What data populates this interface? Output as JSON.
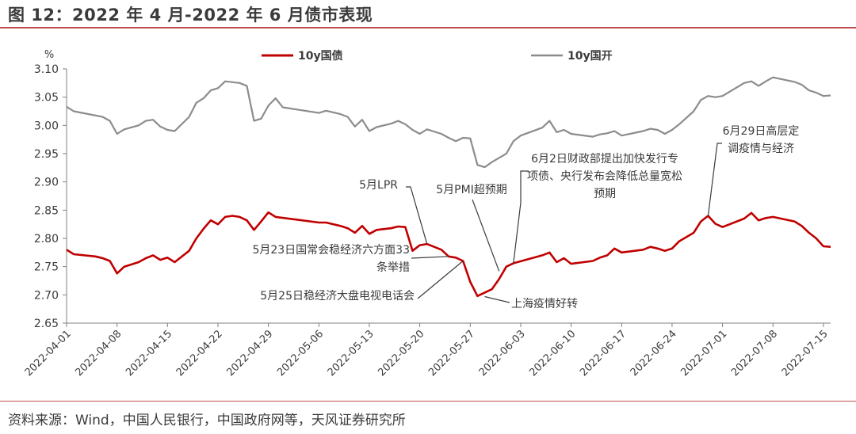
{
  "header": {
    "title": "图 12：2022 年 4 月-2022 年 6 月债市表现"
  },
  "footer": {
    "source": "资料来源：Wind，中国人民银行，中国政府网等，天风证券研究所"
  },
  "colors": {
    "accent": "#c0504d",
    "series_10y_treasury": "#c00000",
    "series_10y_cdb": "#8c8c8c",
    "text": "#3b3b3b"
  },
  "chart_data": {
    "type": "line",
    "ylabel": "%",
    "ylim": [
      2.65,
      3.1
    ],
    "yticks": [
      2.65,
      2.7,
      2.75,
      2.8,
      2.85,
      2.9,
      2.95,
      3.0,
      3.05,
      3.1
    ],
    "ytick_labels": [
      "2.65",
      "2.70",
      "2.75",
      "2.80",
      "2.85",
      "2.90",
      "2.95",
      "3.00",
      "3.05",
      "3.10"
    ],
    "xlim": [
      "2022-04-01",
      "2022-07-16"
    ],
    "xtick_labels": [
      "2022-04-01",
      "2022-04-08",
      "2022-04-15",
      "2022-04-22",
      "2022-04-29",
      "2022-05-06",
      "2022-05-13",
      "2022-05-20",
      "2022-05-27",
      "2022-06-03",
      "2022-06-10",
      "2022-06-17",
      "2022-06-24",
      "2022-07-01",
      "2022-07-08",
      "2022-07-15"
    ],
    "grid": false,
    "legend": "top-center",
    "series": [
      {
        "name": "10y国债",
        "color": "#c00000",
        "points": [
          [
            "2022-04-01",
            2.78
          ],
          [
            "2022-04-02",
            2.772
          ],
          [
            "2022-04-05",
            2.768
          ],
          [
            "2022-04-06",
            2.765
          ],
          [
            "2022-04-07",
            2.76
          ],
          [
            "2022-04-08",
            2.738
          ],
          [
            "2022-04-09",
            2.75
          ],
          [
            "2022-04-11",
            2.758
          ],
          [
            "2022-04-12",
            2.765
          ],
          [
            "2022-04-13",
            2.77
          ],
          [
            "2022-04-14",
            2.762
          ],
          [
            "2022-04-15",
            2.766
          ],
          [
            "2022-04-16",
            2.758
          ],
          [
            "2022-04-18",
            2.778
          ],
          [
            "2022-04-19",
            2.8
          ],
          [
            "2022-04-20",
            2.817
          ],
          [
            "2022-04-21",
            2.832
          ],
          [
            "2022-04-22",
            2.825
          ],
          [
            "2022-04-23",
            2.838
          ],
          [
            "2022-04-24",
            2.84
          ],
          [
            "2022-04-25",
            2.838
          ],
          [
            "2022-04-26",
            2.832
          ],
          [
            "2022-04-27",
            2.815
          ],
          [
            "2022-04-28",
            2.83
          ],
          [
            "2022-04-29",
            2.846
          ],
          [
            "2022-04-30",
            2.838
          ],
          [
            "2022-05-06",
            2.828
          ],
          [
            "2022-05-07",
            2.828
          ],
          [
            "2022-05-09",
            2.822
          ],
          [
            "2022-05-10",
            2.818
          ],
          [
            "2022-05-11",
            2.81
          ],
          [
            "2022-05-12",
            2.822
          ],
          [
            "2022-05-13",
            2.808
          ],
          [
            "2022-05-14",
            2.815
          ],
          [
            "2022-05-16",
            2.818
          ],
          [
            "2022-05-17",
            2.821
          ],
          [
            "2022-05-18",
            2.82
          ],
          [
            "2022-05-19",
            2.778
          ],
          [
            "2022-05-20",
            2.788
          ],
          [
            "2022-05-21",
            2.79
          ],
          [
            "2022-05-23",
            2.78
          ],
          [
            "2022-05-24",
            2.768
          ],
          [
            "2022-05-25",
            2.766
          ],
          [
            "2022-05-26",
            2.76
          ],
          [
            "2022-05-27",
            2.723
          ],
          [
            "2022-05-28",
            2.698
          ],
          [
            "2022-05-30",
            2.71
          ],
          [
            "2022-05-31",
            2.728
          ],
          [
            "2022-06-01",
            2.75
          ],
          [
            "2022-06-02",
            2.756
          ],
          [
            "2022-06-06",
            2.77
          ],
          [
            "2022-06-07",
            2.775
          ],
          [
            "2022-06-08",
            2.758
          ],
          [
            "2022-06-09",
            2.765
          ],
          [
            "2022-06-10",
            2.755
          ],
          [
            "2022-06-13",
            2.76
          ],
          [
            "2022-06-14",
            2.766
          ],
          [
            "2022-06-15",
            2.77
          ],
          [
            "2022-06-16",
            2.782
          ],
          [
            "2022-06-17",
            2.775
          ],
          [
            "2022-06-20",
            2.78
          ],
          [
            "2022-06-21",
            2.785
          ],
          [
            "2022-06-22",
            2.782
          ],
          [
            "2022-06-23",
            2.778
          ],
          [
            "2022-06-24",
            2.782
          ],
          [
            "2022-06-25",
            2.795
          ],
          [
            "2022-06-27",
            2.81
          ],
          [
            "2022-06-28",
            2.83
          ],
          [
            "2022-06-29",
            2.84
          ],
          [
            "2022-06-30",
            2.826
          ],
          [
            "2022-07-01",
            2.82
          ],
          [
            "2022-07-04",
            2.835
          ],
          [
            "2022-07-05",
            2.845
          ],
          [
            "2022-07-06",
            2.832
          ],
          [
            "2022-07-07",
            2.836
          ],
          [
            "2022-07-08",
            2.838
          ],
          [
            "2022-07-11",
            2.83
          ],
          [
            "2022-07-12",
            2.822
          ],
          [
            "2022-07-13",
            2.81
          ],
          [
            "2022-07-14",
            2.8
          ],
          [
            "2022-07-15",
            2.786
          ],
          [
            "2022-07-16",
            2.785
          ]
        ]
      },
      {
        "name": "10y国开",
        "color": "#8c8c8c",
        "points": [
          [
            "2022-04-01",
            3.033
          ],
          [
            "2022-04-02",
            3.025
          ],
          [
            "2022-04-06",
            3.015
          ],
          [
            "2022-04-07",
            3.008
          ],
          [
            "2022-04-08",
            2.985
          ],
          [
            "2022-04-09",
            2.993
          ],
          [
            "2022-04-11",
            3.0
          ],
          [
            "2022-04-12",
            3.008
          ],
          [
            "2022-04-13",
            3.01
          ],
          [
            "2022-04-14",
            2.998
          ],
          [
            "2022-04-15",
            2.992
          ],
          [
            "2022-04-16",
            2.99
          ],
          [
            "2022-04-18",
            3.015
          ],
          [
            "2022-04-19",
            3.04
          ],
          [
            "2022-04-20",
            3.048
          ],
          [
            "2022-04-21",
            3.062
          ],
          [
            "2022-04-22",
            3.066
          ],
          [
            "2022-04-23",
            3.078
          ],
          [
            "2022-04-25",
            3.075
          ],
          [
            "2022-04-26",
            3.07
          ],
          [
            "2022-04-27",
            3.008
          ],
          [
            "2022-04-28",
            3.012
          ],
          [
            "2022-04-29",
            3.035
          ],
          [
            "2022-04-30",
            3.048
          ],
          [
            "2022-05-01",
            3.032
          ],
          [
            "2022-05-06",
            3.022
          ],
          [
            "2022-05-07",
            3.026
          ],
          [
            "2022-05-09",
            3.02
          ],
          [
            "2022-05-10",
            3.015
          ],
          [
            "2022-05-11",
            2.998
          ],
          [
            "2022-05-12",
            3.01
          ],
          [
            "2022-05-13",
            2.99
          ],
          [
            "2022-05-14",
            2.997
          ],
          [
            "2022-05-16",
            3.003
          ],
          [
            "2022-05-17",
            3.008
          ],
          [
            "2022-05-18",
            3.002
          ],
          [
            "2022-05-19",
            2.992
          ],
          [
            "2022-05-20",
            2.985
          ],
          [
            "2022-05-21",
            2.993
          ],
          [
            "2022-05-23",
            2.985
          ],
          [
            "2022-05-24",
            2.978
          ],
          [
            "2022-05-25",
            2.972
          ],
          [
            "2022-05-26",
            2.978
          ],
          [
            "2022-05-27",
            2.977
          ],
          [
            "2022-05-28",
            2.93
          ],
          [
            "2022-05-29",
            2.926
          ],
          [
            "2022-05-30",
            2.935
          ],
          [
            "2022-06-01",
            2.95
          ],
          [
            "2022-06-02",
            2.972
          ],
          [
            "2022-06-03",
            2.982
          ],
          [
            "2022-06-06",
            2.996
          ],
          [
            "2022-06-07",
            3.008
          ],
          [
            "2022-06-08",
            2.988
          ],
          [
            "2022-06-09",
            2.992
          ],
          [
            "2022-06-10",
            2.985
          ],
          [
            "2022-06-13",
            2.98
          ],
          [
            "2022-06-14",
            2.984
          ],
          [
            "2022-06-15",
            2.986
          ],
          [
            "2022-06-16",
            2.99
          ],
          [
            "2022-06-17",
            2.982
          ],
          [
            "2022-06-20",
            2.99
          ],
          [
            "2022-06-21",
            2.994
          ],
          [
            "2022-06-22",
            2.992
          ],
          [
            "2022-06-23",
            2.985
          ],
          [
            "2022-06-24",
            2.992
          ],
          [
            "2022-06-25",
            3.002
          ],
          [
            "2022-06-27",
            3.025
          ],
          [
            "2022-06-28",
            3.045
          ],
          [
            "2022-06-29",
            3.052
          ],
          [
            "2022-06-30",
            3.05
          ],
          [
            "2022-07-01",
            3.052
          ],
          [
            "2022-07-04",
            3.075
          ],
          [
            "2022-07-05",
            3.078
          ],
          [
            "2022-07-06",
            3.07
          ],
          [
            "2022-07-07",
            3.078
          ],
          [
            "2022-07-08",
            3.085
          ],
          [
            "2022-07-11",
            3.077
          ],
          [
            "2022-07-12",
            3.072
          ],
          [
            "2022-07-13",
            3.062
          ],
          [
            "2022-07-14",
            3.058
          ],
          [
            "2022-07-15",
            3.052
          ],
          [
            "2022-07-16",
            3.053
          ]
        ]
      }
    ],
    "annotations": [
      {
        "lines": [
          "5月LPR"
        ],
        "point": [
          "2022-05-21",
          2.79
        ],
        "anchor": "end"
      },
      {
        "lines": [
          "5月23日国常会稳经济六方面33",
          "条举措"
        ],
        "point": [
          "2022-05-24",
          2.768
        ],
        "anchor": "end"
      },
      {
        "lines": [
          "5月25日稳经济大盘电视电话会"
        ],
        "point": [
          "2022-05-26",
          2.76
        ],
        "anchor": "end"
      },
      {
        "lines": [
          "5月PMI超预期"
        ],
        "point": [
          "2022-05-31",
          2.742
        ],
        "anchor": "middle"
      },
      {
        "lines": [
          "上海疫情好转"
        ],
        "point": [
          "2022-05-29",
          2.697
        ],
        "anchor": "start"
      },
      {
        "lines": [
          "6月2日财政部提出加快发行专",
          "项债、央行发布会降低总量宽松",
          "预期"
        ],
        "point": [
          "2022-06-02",
          2.756
        ],
        "anchor": "middle"
      },
      {
        "lines": [
          "6月29日高层定",
          "调疫情与经济"
        ],
        "point": [
          "2022-06-29",
          2.84
        ],
        "anchor": "middle"
      }
    ]
  }
}
